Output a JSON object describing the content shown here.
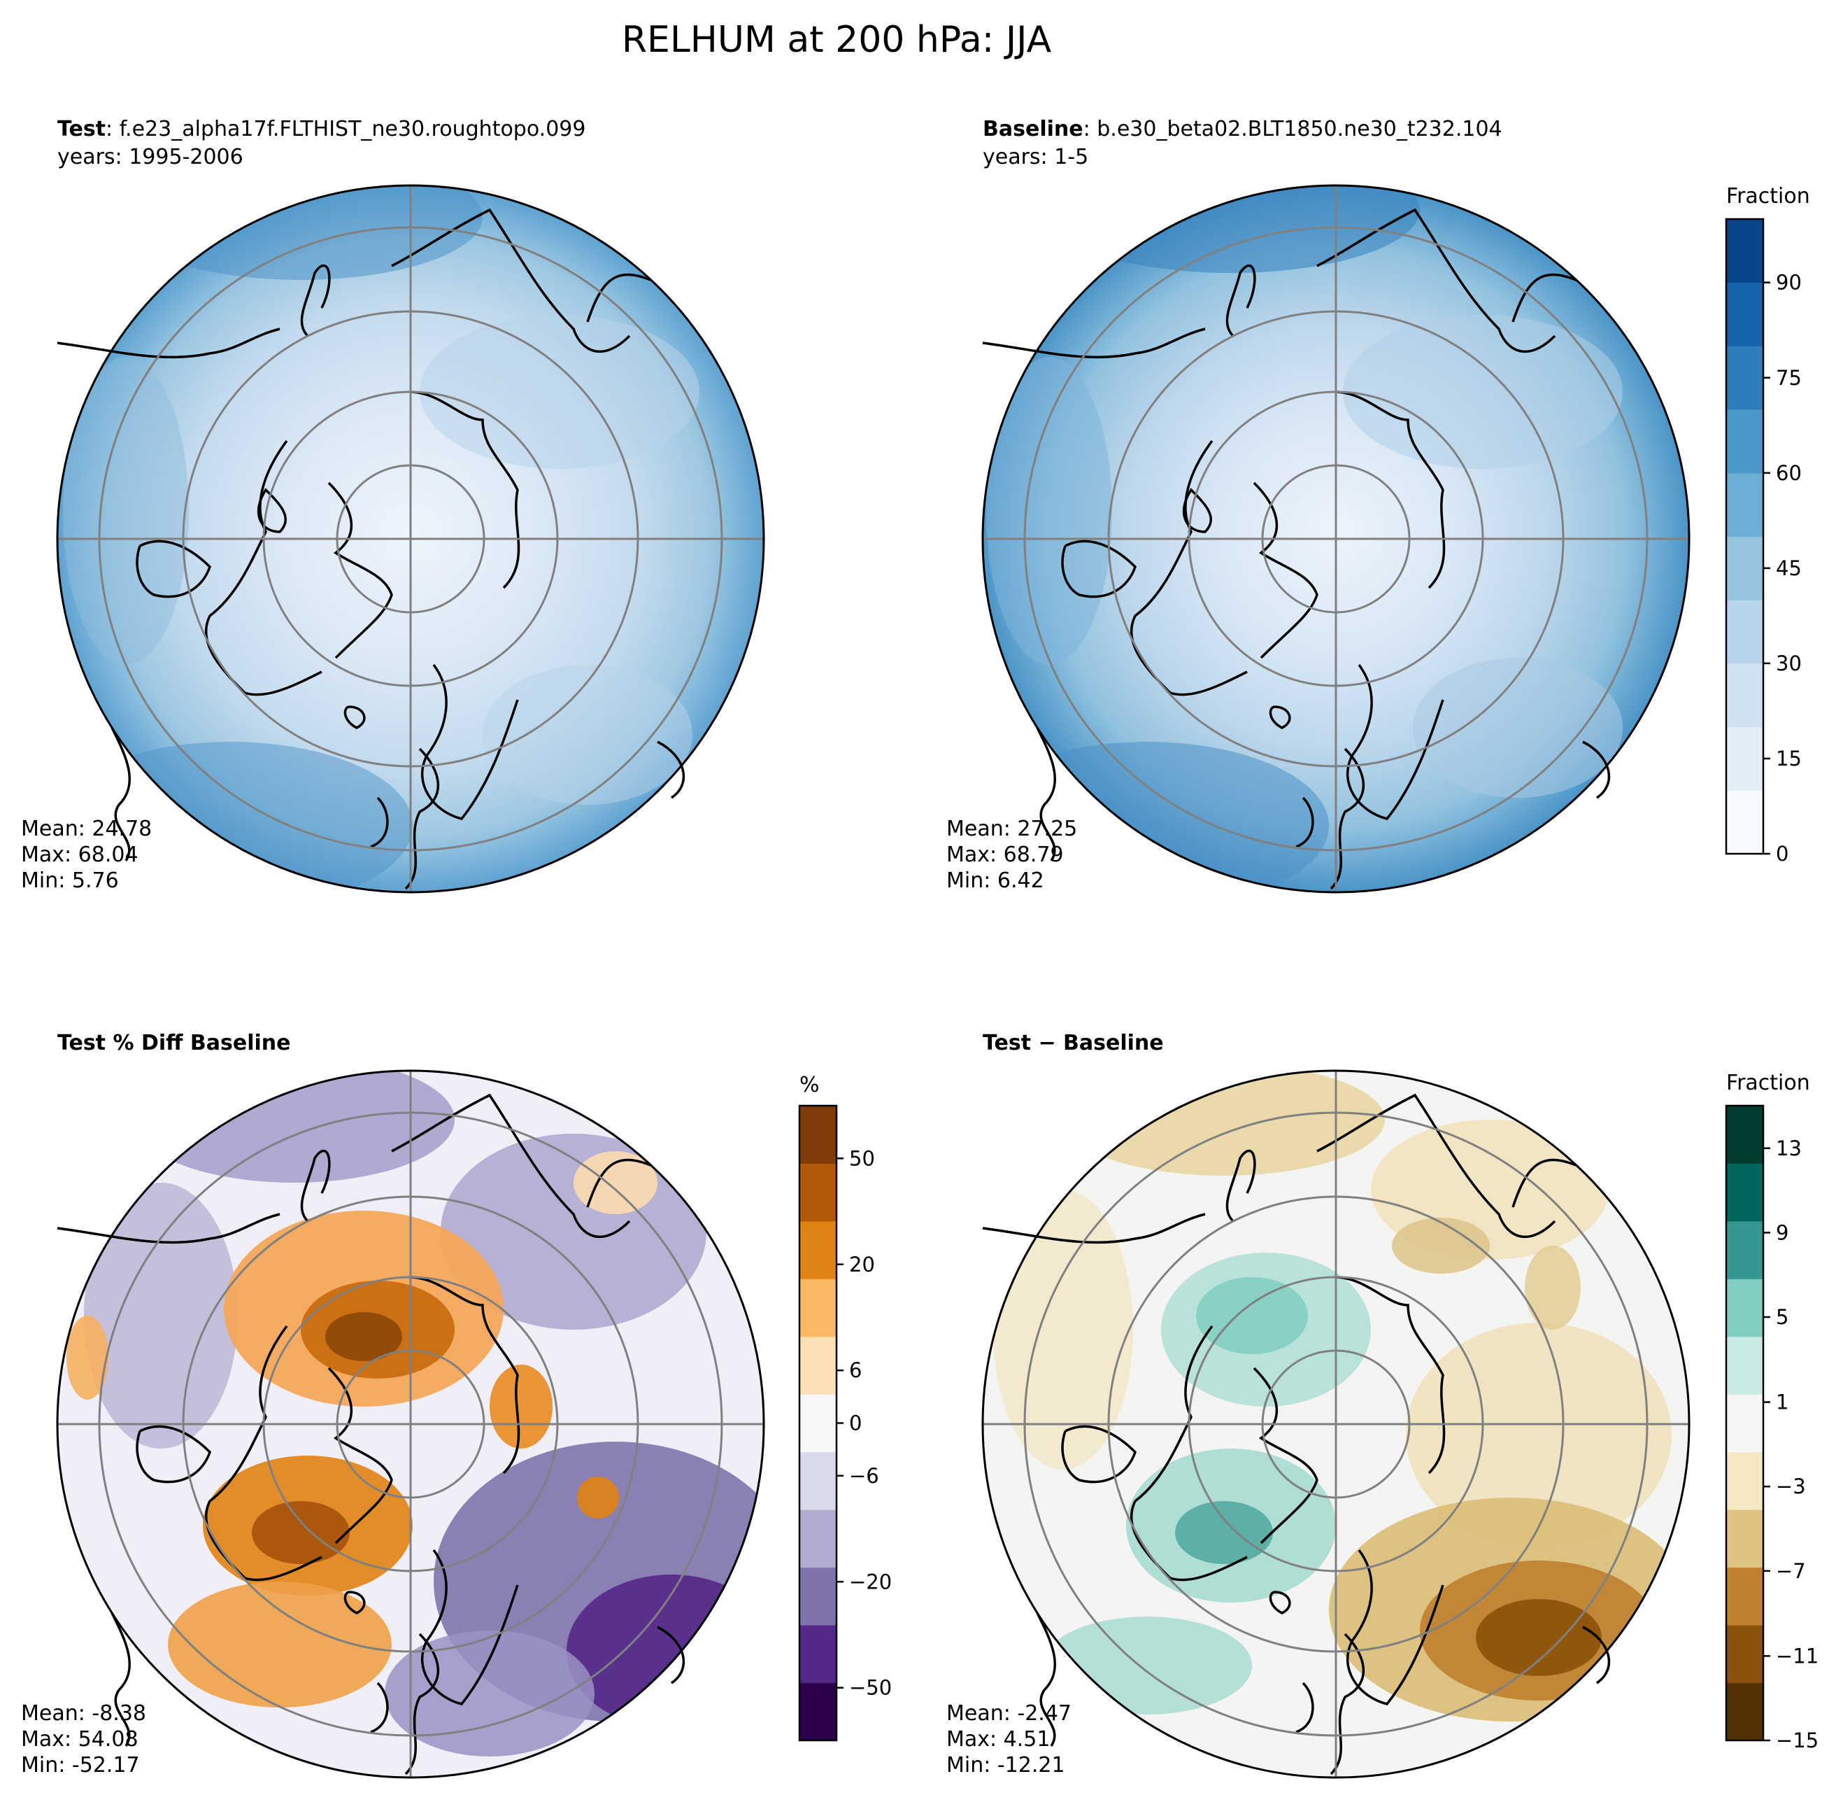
{
  "figure": {
    "suptitle": "RELHUM at 200 hPa: JJA"
  },
  "panels": {
    "test": {
      "title_bold": "Test",
      "title_rest": ": f.e23_alpha17f.FLTHIST_ne30.roughtopo.099",
      "years": "years: 1995-2006",
      "mean": "Mean: 24.78",
      "max": "Max: 68.04",
      "min": "Min:  5.76"
    },
    "baseline": {
      "title_bold": "Baseline",
      "title_rest": ": b.e30_beta02.BLT1850.ne30_t232.104",
      "years": "years: 1-5",
      "mean": "Mean: 27.25",
      "max": "Max: 68.79",
      "min": "Min:  6.42"
    },
    "pctdiff": {
      "title_bold": "Test % Diff Baseline",
      "mean": "Mean: -8.38",
      "max": "Max: 54.08",
      "min": "Min: -52.17"
    },
    "diff": {
      "title_bold": "Test − Baseline",
      "mean": "Mean: -2.47",
      "max": "Max:  4.51",
      "min": "Min: -12.21"
    }
  },
  "colorbars": {
    "blues": {
      "label": "Fraction",
      "ticks": [
        "0",
        "15",
        "30",
        "45",
        "60",
        "75",
        "90"
      ],
      "colors": [
        "#f7fbff",
        "#e3eef9",
        "#d0e1f2",
        "#b7d4ea",
        "#94c4df",
        "#6baed6",
        "#4a98c9",
        "#2e7ebc",
        "#1764ab",
        "#08468b"
      ]
    },
    "purple_orange": {
      "label": "%",
      "ticks": [
        "−50",
        "−20",
        "−6",
        "0",
        "6",
        "20",
        "50"
      ],
      "colors": [
        "#2d004b",
        "#542788",
        "#8073ac",
        "#b2abd2",
        "#d8daeb",
        "#f7f7f7",
        "#fee0b6",
        "#fdb863",
        "#e08214",
        "#b35806",
        "#7f3b08"
      ]
    },
    "brbg": {
      "label": "Fraction",
      "ticks": [
        "−15",
        "−11",
        "−7",
        "−3",
        "1",
        "5",
        "9",
        "13"
      ],
      "colors": [
        "#543005",
        "#8c510a",
        "#bf812d",
        "#dfc27d",
        "#f6e8c3",
        "#f5f5f5",
        "#c7eae5",
        "#80cdc1",
        "#35978f",
        "#01665e",
        "#003c30"
      ]
    }
  },
  "chart_data": [
    {
      "type": "heatmap",
      "projection": "north-polar-stereographic",
      "title": "Test: f.e23_alpha17f.FLTHIST_ne30.roughtopo.099",
      "subtitle": "years: 1995-2006",
      "colorbar": "blues",
      "stats": {
        "mean": 24.78,
        "max": 68.04,
        "min": 5.76
      }
    },
    {
      "type": "heatmap",
      "projection": "north-polar-stereographic",
      "title": "Baseline: b.e30_beta02.BLT1850.ne30_t232.104",
      "subtitle": "years: 1-5",
      "colorbar": "blues",
      "colorbar_range": [
        0,
        100
      ],
      "colorbar_ticks": [
        0,
        15,
        30,
        45,
        60,
        75,
        90
      ],
      "stats": {
        "mean": 27.25,
        "max": 68.79,
        "min": 6.42
      }
    },
    {
      "type": "heatmap",
      "projection": "north-polar-stereographic",
      "title": "Test % Diff Baseline",
      "colorbar": "purple_orange",
      "colorbar_ticks": [
        -50,
        -20,
        -6,
        0,
        6,
        20,
        50
      ],
      "stats": {
        "mean": -8.38,
        "max": 54.08,
        "min": -52.17
      }
    },
    {
      "type": "heatmap",
      "projection": "north-polar-stereographic",
      "title": "Test − Baseline",
      "colorbar": "brbg",
      "colorbar_range": [
        -15,
        15
      ],
      "colorbar_ticks": [
        -15,
        -11,
        -7,
        -3,
        1,
        5,
        9,
        13
      ],
      "stats": {
        "mean": -2.47,
        "max": 4.51,
        "min": -12.21
      }
    }
  ]
}
